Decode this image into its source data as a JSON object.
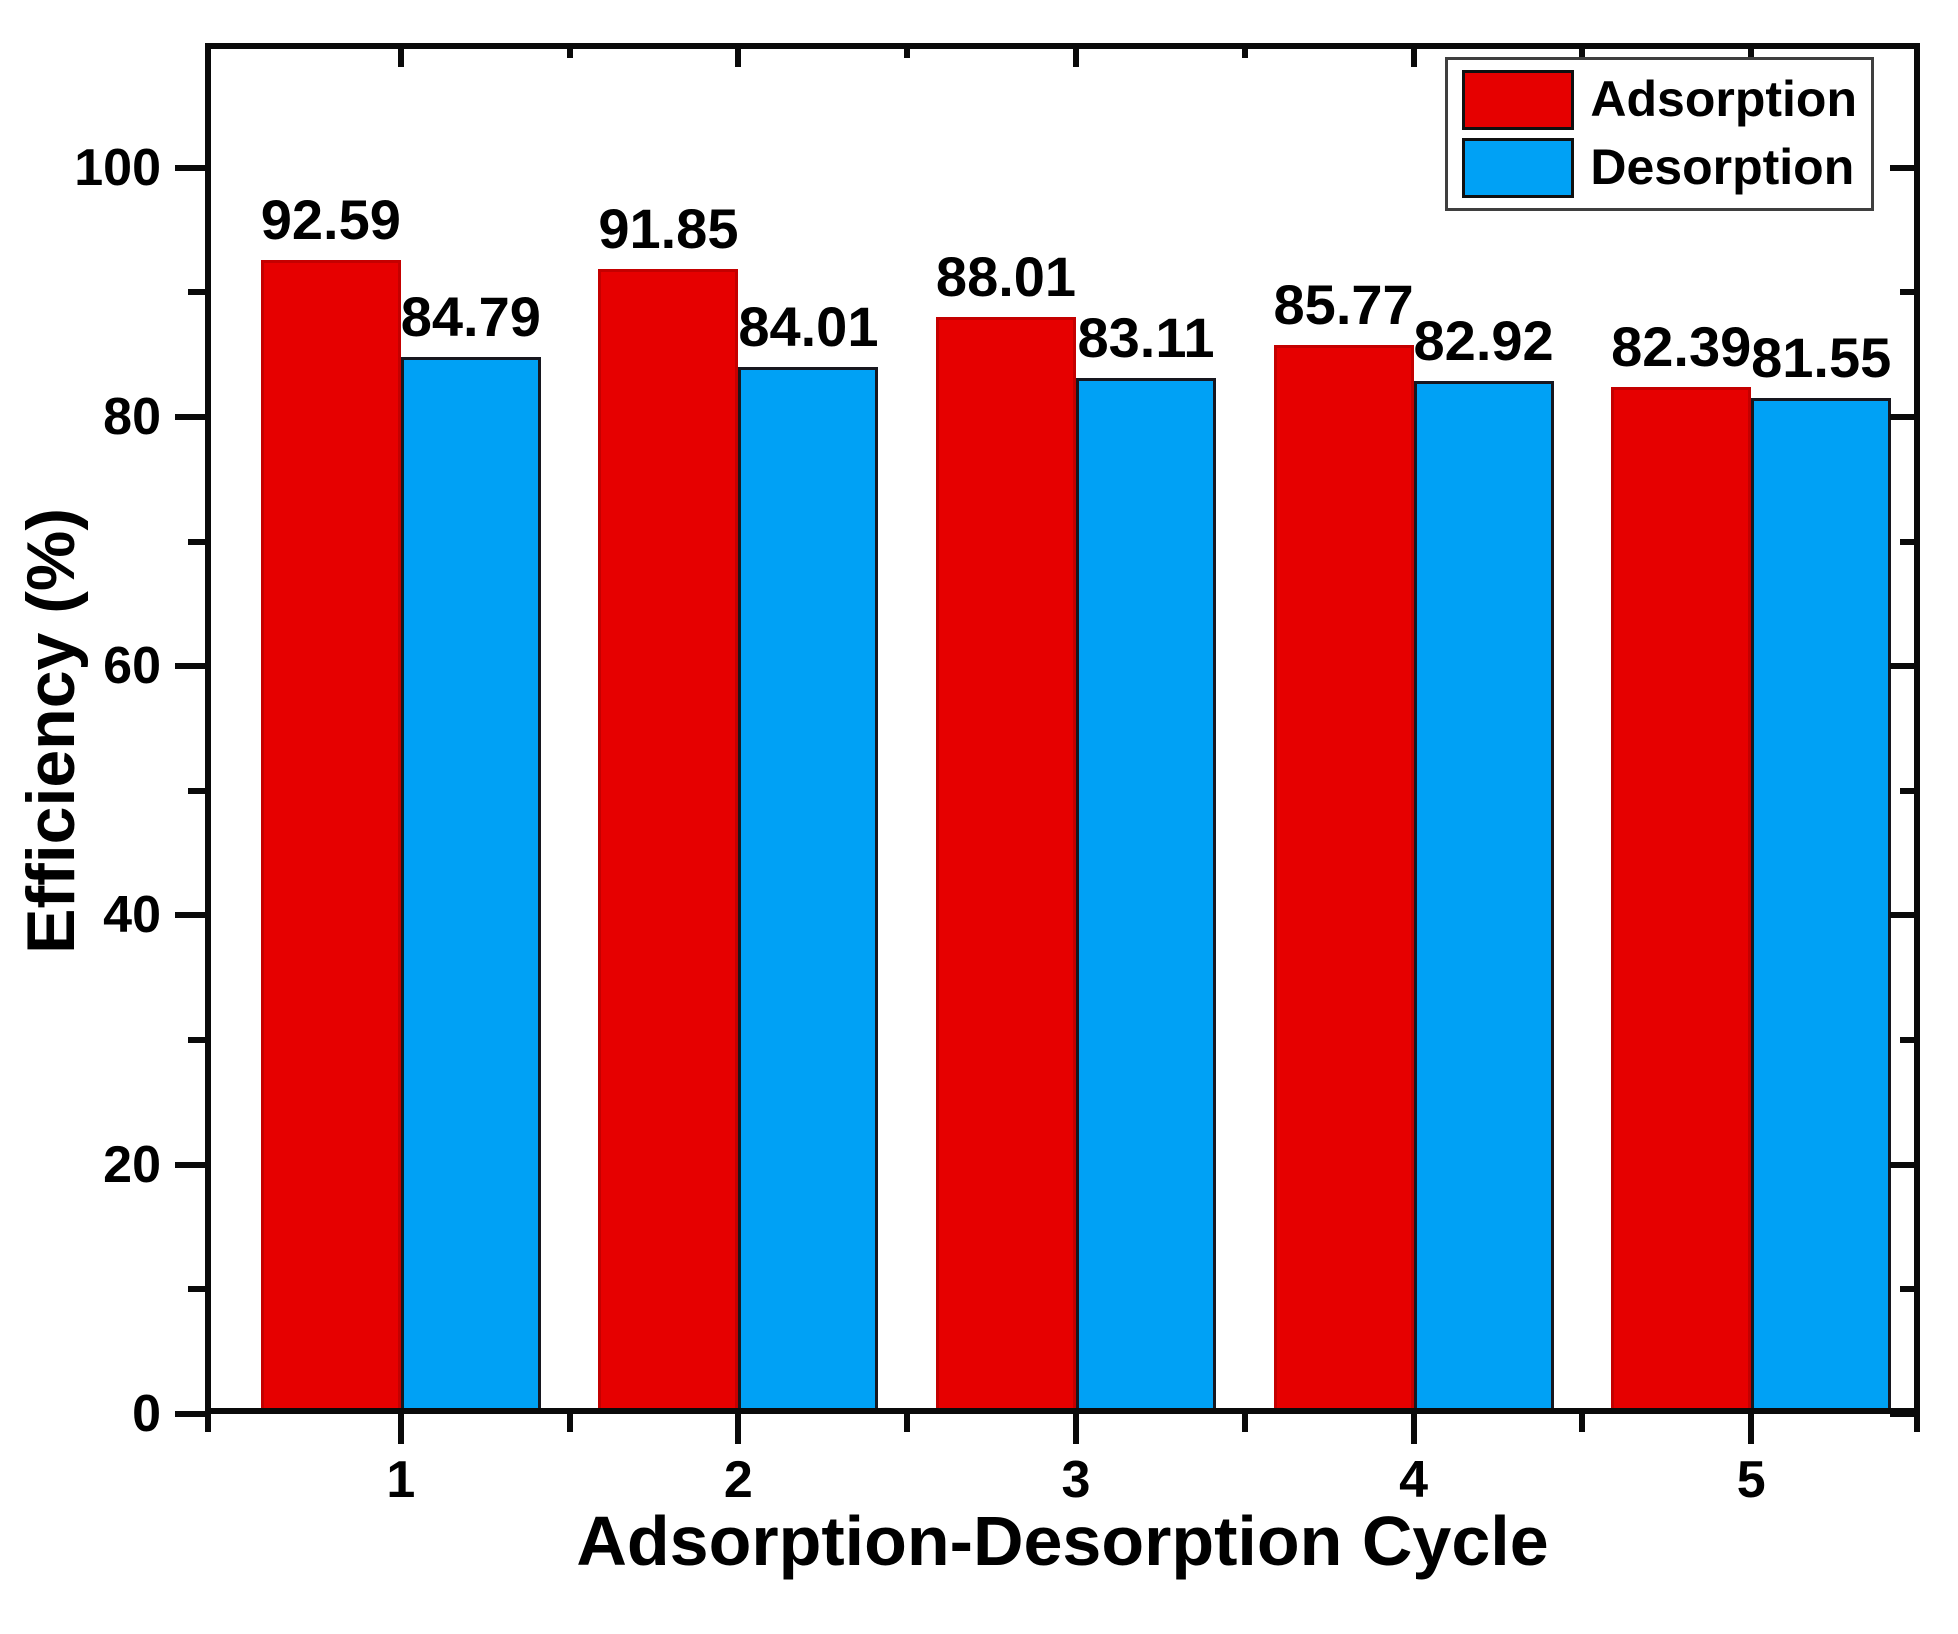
{
  "chart_data": {
    "type": "bar",
    "title": "",
    "xlabel": "Adsorption-Desorption Cycle",
    "ylabel": "Efficiency (%)",
    "categories": [
      "1",
      "2",
      "3",
      "4",
      "5"
    ],
    "series": [
      {
        "name": "Adsorption",
        "color": "#e60000",
        "bar_border": "#c40000",
        "values": [
          92.59,
          91.85,
          88.01,
          85.77,
          82.39
        ]
      },
      {
        "name": "Desorption",
        "color": "#00a1f5",
        "bar_border": "#17171f",
        "values": [
          84.79,
          84.01,
          83.11,
          82.92,
          81.55
        ]
      }
    ],
    "ylim": [
      0,
      110
    ],
    "yticks": [
      0,
      20,
      40,
      60,
      80,
      100
    ],
    "yminor": [
      10,
      30,
      50,
      70,
      90
    ],
    "xlim": [
      0.42,
      5.5
    ],
    "xminor": [
      1.5,
      2.5,
      3.5,
      4.5
    ],
    "grid": false,
    "bar_value_labels": true,
    "legend_position": "top-right",
    "frame_color": "#0a0a0a",
    "text_color": "#000000"
  }
}
